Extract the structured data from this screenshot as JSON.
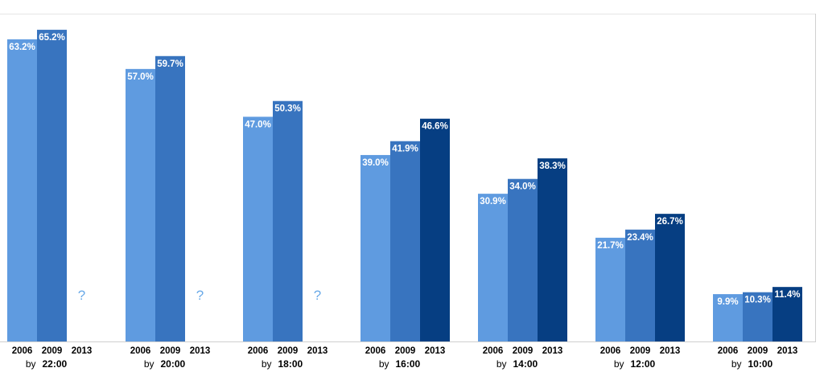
{
  "chart_data": {
    "type": "bar",
    "categories": [
      "22:00",
      "20:00",
      "18:00",
      "16:00",
      "14:00",
      "12:00",
      "10:00"
    ],
    "category_prefix": "by",
    "series": [
      {
        "name": "2006",
        "values": [
          63.2,
          57.0,
          47.0,
          39.0,
          30.9,
          21.7,
          9.9
        ]
      },
      {
        "name": "2009",
        "values": [
          65.2,
          59.7,
          50.3,
          41.9,
          34.0,
          23.4,
          10.3
        ]
      },
      {
        "name": "2013",
        "values": [
          null,
          null,
          null,
          46.6,
          38.3,
          26.7,
          11.4
        ]
      }
    ],
    "value_labels": [
      [
        "63.2%",
        "57.0%",
        "47.0%",
        "39.0%",
        "30.9%",
        "21.7%",
        "9.9%"
      ],
      [
        "65.2%",
        "59.7%",
        "50.3%",
        "41.9%",
        "34.0%",
        "23.4%",
        "10.3%"
      ],
      [
        null,
        null,
        null,
        "46.6%",
        "38.3%",
        "26.7%",
        "11.4%"
      ]
    ],
    "missing_label": "?",
    "ylim": [
      0,
      70
    ],
    "colors": {
      "2006": "#5f9be0",
      "2009": "#3874bf",
      "2013": "#063e82",
      "missing": "#6aaae8"
    },
    "title": "",
    "xlabel": "",
    "ylabel": ""
  }
}
